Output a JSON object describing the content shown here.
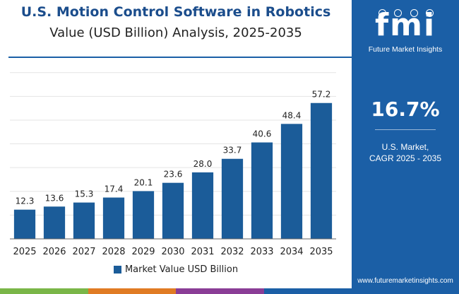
{
  "title": "U.S. Motion Control Software in Robotics",
  "subtitle": "Value (USD Billion) Analysis, 2025-2035",
  "colors": {
    "bar": "#1b5c99",
    "title": "#1b4d8c",
    "panel": "#1b5fa6",
    "stripe": [
      "#7ab648",
      "#e07b24",
      "#8a3d96",
      "#1b5fa6"
    ]
  },
  "chart_data": {
    "type": "bar",
    "title": "U.S. Motion Control Software in Robotics",
    "subtitle": "Value (USD Billion) Analysis, 2025-2035",
    "xlabel": "",
    "ylabel": "",
    "categories": [
      "2025",
      "2026",
      "2027",
      "2028",
      "2029",
      "2030",
      "2031",
      "2032",
      "2033",
      "2034",
      "2035"
    ],
    "series": [
      {
        "name": "Market Value USD Billion",
        "values": [
          12.3,
          13.6,
          15.3,
          17.4,
          20.1,
          23.6,
          28.0,
          33.7,
          40.6,
          48.4,
          57.2
        ],
        "labels": [
          "12.3",
          "13.6",
          "15.3",
          "17.4",
          "20.1",
          "23.6",
          "28.0",
          "33.7",
          "40.6",
          "48.4",
          "57.2"
        ]
      }
    ],
    "ylim": [
      0,
      72
    ],
    "grid": true,
    "legend": "bottom-center"
  },
  "legend": {
    "label": "Market Value USD Billion"
  },
  "side_panel": {
    "logo_letters": "fmi",
    "logo_text": "Future Market Insights",
    "cagr_value": "16.7%",
    "cagr_label_line1": "U.S. Market,",
    "cagr_label_line2": "CAGR 2025 - 2035",
    "website": "www.futuremarketinsights.com"
  }
}
